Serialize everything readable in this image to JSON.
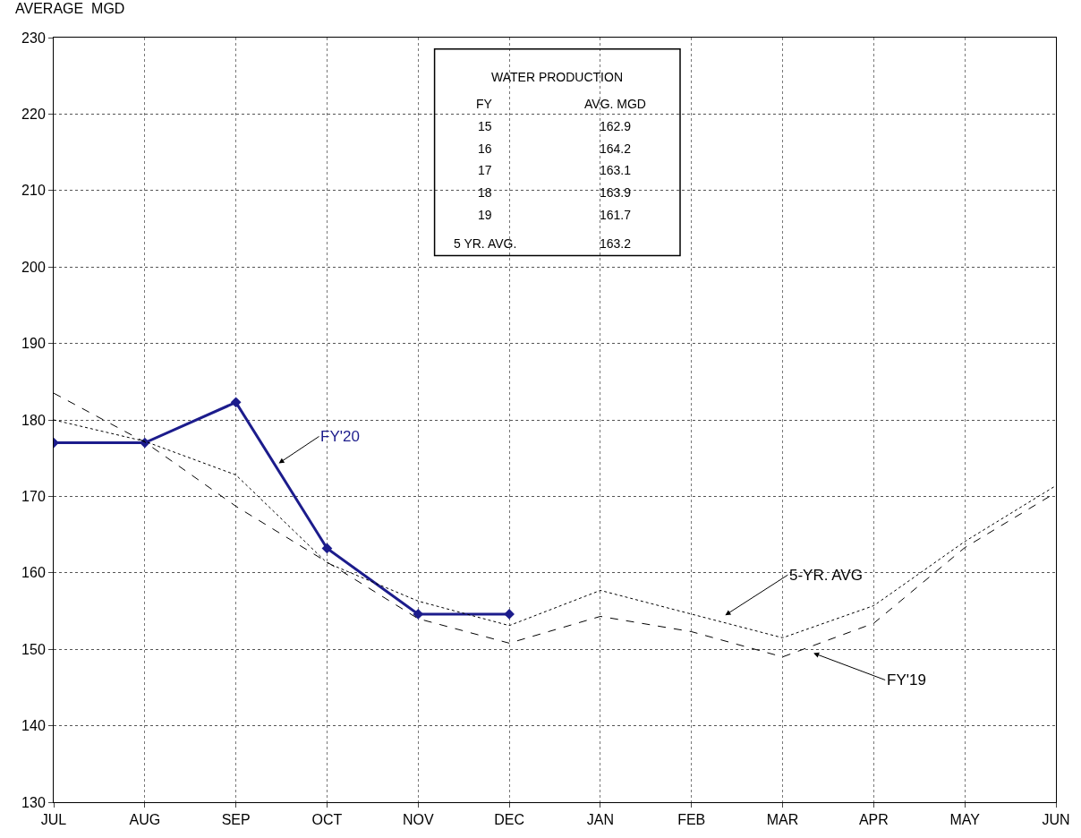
{
  "chart_data": {
    "type": "line",
    "ylabel": "AVERAGE  MGD",
    "categories": [
      "JUL",
      "AUG",
      "SEP",
      "OCT",
      "NOV",
      "DEC",
      "JAN",
      "FEB",
      "MAR",
      "APR",
      "MAY",
      "JUN"
    ],
    "series": [
      {
        "name": "FY'20",
        "color": "#1c1c8c",
        "marker": "diamond",
        "line_style": "solid",
        "values": [
          177.0,
          177.0,
          182.3,
          163.2,
          154.6,
          154.6,
          null,
          null,
          null,
          null,
          null,
          null
        ]
      },
      {
        "name": "5-YR. AVG",
        "color": "#000000",
        "marker": "none",
        "line_style": "dotted",
        "values": [
          180.0,
          177.2,
          172.8,
          161.3,
          156.3,
          153.1,
          157.7,
          154.6,
          151.5,
          155.7,
          164.1,
          171.4
        ]
      },
      {
        "name": "FY'19",
        "color": "#000000",
        "marker": "none",
        "line_style": "dashed",
        "values": [
          183.5,
          177.1,
          168.7,
          161.4,
          154.0,
          150.8,
          154.3,
          152.3,
          149.0,
          153.4,
          163.3,
          170.5
        ]
      }
    ],
    "ylim": [
      130,
      230
    ],
    "yticks": [
      130,
      140,
      150,
      160,
      170,
      180,
      190,
      200,
      210,
      220,
      230
    ],
    "grid": true,
    "legend": false,
    "annotations": [
      "WATER PRODUCTION",
      "FY",
      "AVG. MGD",
      "15",
      "162.9",
      "16",
      "164.2",
      "17",
      "163.1",
      "18",
      "163.9",
      "19",
      "161.7",
      "5 YR. AVG.",
      "163.2"
    ]
  }
}
